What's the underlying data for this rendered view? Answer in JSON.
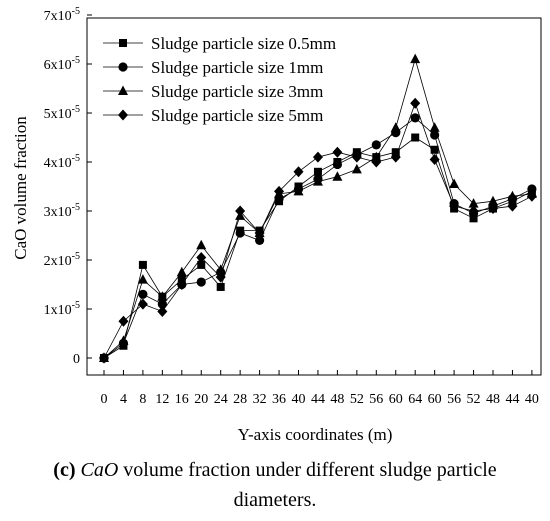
{
  "caption": {
    "panel": "(c)",
    "species": "CaO",
    "line1_rest": "volume fraction under different sludge particle",
    "line2": "diameters."
  },
  "chart_data": {
    "type": "line",
    "xlabel": "Y-axis coordinates (m)",
    "ylabel": "CaO volume fraction",
    "categories": [
      "0",
      "4",
      "8",
      "12",
      "16",
      "20",
      "24",
      "28",
      "32",
      "36",
      "40",
      "44",
      "48",
      "52",
      "56",
      "60",
      "64",
      "60",
      "56",
      "52",
      "48",
      "44",
      "40"
    ],
    "ylim": [
      0,
      7e-05
    ],
    "yticks": [
      {
        "value": 0,
        "mant": "0",
        "exp": ""
      },
      {
        "value": 1e-05,
        "mant": "1x10",
        "exp": "-5"
      },
      {
        "value": 2e-05,
        "mant": "2x10",
        "exp": "-5"
      },
      {
        "value": 3e-05,
        "mant": "3x10",
        "exp": "-5"
      },
      {
        "value": 4e-05,
        "mant": "4x10",
        "exp": "-5"
      },
      {
        "value": 5e-05,
        "mant": "5x10",
        "exp": "-5"
      },
      {
        "value": 6e-05,
        "mant": "6x10",
        "exp": "-5"
      },
      {
        "value": 7e-05,
        "mant": "7x10",
        "exp": "-5"
      }
    ],
    "legend_position": "top-left",
    "series": [
      {
        "name": "Sludge particle size 0.5mm",
        "marker": "square",
        "values": [
          0,
          2.5e-06,
          1.9e-05,
          1.25e-05,
          1.6e-05,
          1.9e-05,
          1.45e-05,
          2.6e-05,
          2.6e-05,
          3.2e-05,
          3.5e-05,
          3.8e-05,
          4e-05,
          4.2e-05,
          4.1e-05,
          4.2e-05,
          4.5e-05,
          4.25e-05,
          3.05e-05,
          2.85e-05,
          3.05e-05,
          3.2e-05,
          3.4e-05
        ]
      },
      {
        "name": "Sludge particle size 1mm",
        "marker": "circle",
        "values": [
          0,
          3e-06,
          1.3e-05,
          1.1e-05,
          1.5e-05,
          1.55e-05,
          1.75e-05,
          2.55e-05,
          2.4e-05,
          3.25e-05,
          3.45e-05,
          3.65e-05,
          3.95e-05,
          4.15e-05,
          4.35e-05,
          4.6e-05,
          4.9e-05,
          4.55e-05,
          3.15e-05,
          2.95e-05,
          3.1e-05,
          3.25e-05,
          3.45e-05
        ]
      },
      {
        "name": "Sludge particle size 3mm",
        "marker": "triangle",
        "values": [
          0,
          3.5e-06,
          1.6e-05,
          1.25e-05,
          1.75e-05,
          2.3e-05,
          1.8e-05,
          2.9e-05,
          2.55e-05,
          3.35e-05,
          3.4e-05,
          3.6e-05,
          3.7e-05,
          3.85e-05,
          4.1e-05,
          4.7e-05,
          6.1e-05,
          4.7e-05,
          3.55e-05,
          3.15e-05,
          3.2e-05,
          3.3e-05,
          3.35e-05
        ]
      },
      {
        "name": "Sludge particle size 5mm",
        "marker": "diamond",
        "values": [
          0,
          7.5e-06,
          1.1e-05,
          9.5e-06,
          1.5e-05,
          2.05e-05,
          1.65e-05,
          3e-05,
          2.55e-05,
          3.4e-05,
          3.8e-05,
          4.1e-05,
          4.2e-05,
          4.1e-05,
          4e-05,
          4.1e-05,
          5.2e-05,
          4.05e-05,
          3.1e-05,
          3e-05,
          3.05e-05,
          3.1e-05,
          3.3e-05
        ]
      }
    ]
  }
}
